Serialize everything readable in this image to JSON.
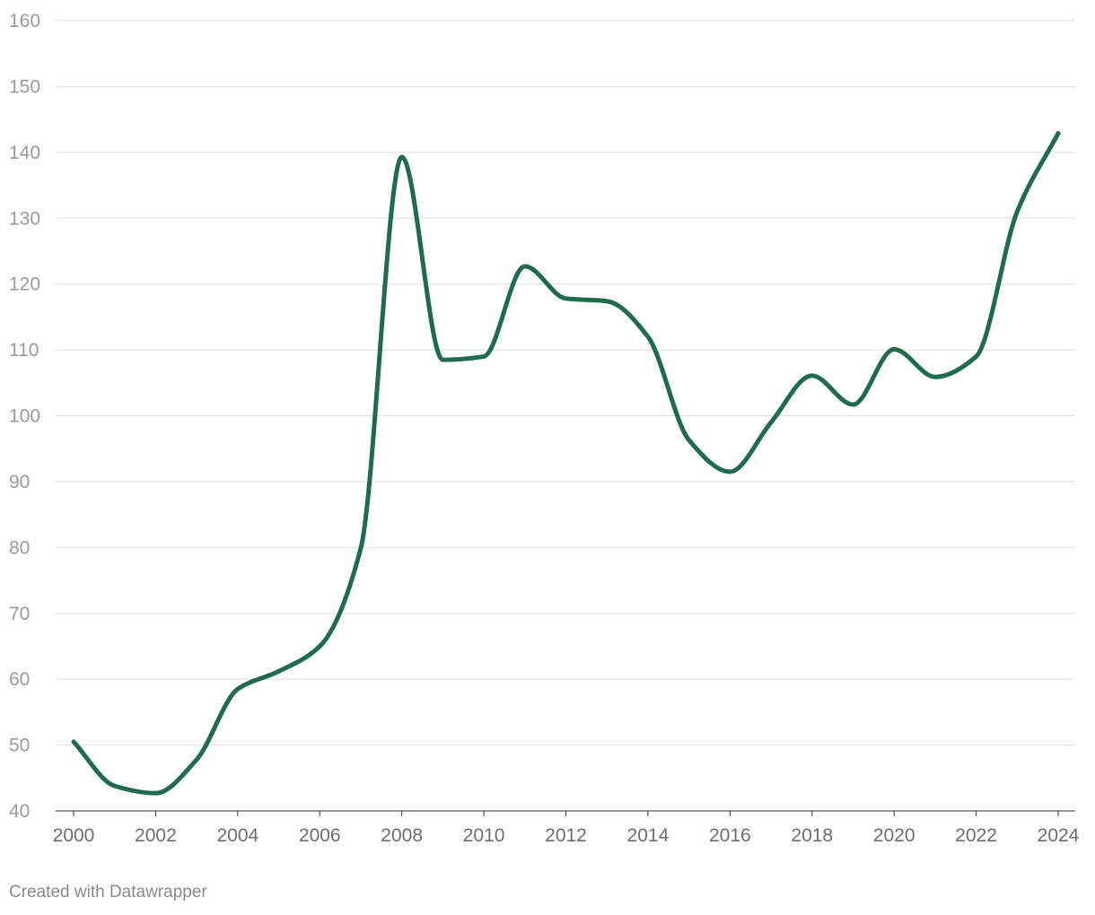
{
  "chart_data": {
    "type": "line",
    "title": "",
    "xlabel": "",
    "ylabel": "",
    "xlim": [
      2000,
      2024
    ],
    "ylim": [
      40,
      160
    ],
    "x_ticks": [
      "2000",
      "2002",
      "2004",
      "2006",
      "2008",
      "2010",
      "2012",
      "2014",
      "2016",
      "2018",
      "2020",
      "2022",
      "2024"
    ],
    "y_ticks": [
      "40",
      "50",
      "60",
      "70",
      "80",
      "90",
      "100",
      "110",
      "120",
      "130",
      "140",
      "150",
      "160"
    ],
    "grid": true,
    "legend": "none",
    "line_color": "#1f6b4d",
    "series": [
      {
        "x": [
          2000,
          2001,
          2002,
          2003,
          2004,
          2005,
          2006,
          2007,
          2008,
          2009,
          2010,
          2011,
          2012,
          2013,
          2014,
          2015,
          2016,
          2017,
          2018,
          2019,
          2020,
          2021,
          2022,
          2023,
          2024
        ],
        "values": [
          50.5,
          43.8,
          42.7,
          47.8,
          58.5,
          61.2,
          65.0,
          79.9,
          139.3,
          108.5,
          109.0,
          122.7,
          117.8,
          117.4,
          112.0,
          96.3,
          91.5,
          99.0,
          106.1,
          101.7,
          110.1,
          105.9,
          109.0,
          131.0,
          142.9
        ]
      }
    ]
  },
  "footer": {
    "credit": "Created with Datawrapper"
  }
}
